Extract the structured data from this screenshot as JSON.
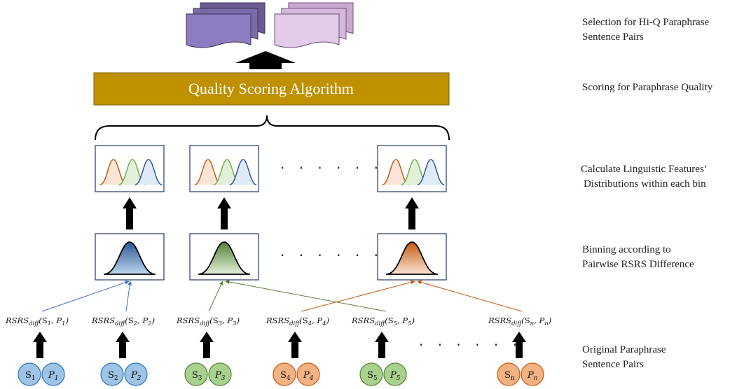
{
  "stages": {
    "selection": [
      "Selection for Hi-Q Paraphrase",
      "Sentence Pairs"
    ],
    "scoring": [
      "Scoring for Paraphrase Quality"
    ],
    "distributions": [
      "Calculate Linguistic Features’",
      "Distributions within each bin"
    ],
    "binning": [
      "Binning according to",
      "Pairwise RSRS Difference"
    ],
    "original": [
      "Original Paraphrase",
      "Sentence Pairs"
    ]
  },
  "algorithm": {
    "label": "Quality Scoring Algorithm",
    "color": "#bf9000"
  },
  "ellipsis": "· · · · · ·",
  "bins": [
    {
      "id": "bin-1",
      "color": "#4472c4",
      "light": "#9dc3e6"
    },
    {
      "id": "bin-2",
      "color": "#70ad47",
      "light": "#c5e0b4"
    },
    {
      "id": "bin-n",
      "color": "#ed7d31",
      "light": "#f8cbad"
    }
  ],
  "feature_colors": [
    "#c55a11",
    "#70ad47",
    "#2f5597"
  ],
  "rsrs": {
    "function": "RSRS",
    "subscript": "diff",
    "pairs": [
      {
        "s": "S",
        "p": "P",
        "idx": "1"
      },
      {
        "s": "S",
        "p": "P",
        "idx": "2"
      },
      {
        "s": "S",
        "p": "P",
        "idx": "3"
      },
      {
        "s": "S",
        "p": "P",
        "idx": "4"
      },
      {
        "s": "S",
        "p": "P",
        "idx": "5"
      },
      {
        "s": "S",
        "p": "P",
        "idx": "n"
      }
    ]
  },
  "pairs": [
    {
      "s": "S",
      "p": "P",
      "idx": "1",
      "color": "#9dc3e6",
      "stroke": "#2e75b6"
    },
    {
      "s": "S",
      "p": "P",
      "idx": "2",
      "color": "#9dc3e6",
      "stroke": "#2e75b6"
    },
    {
      "s": "S",
      "p": "P",
      "idx": "3",
      "color": "#a9d18e",
      "stroke": "#548235"
    },
    {
      "s": "S",
      "p": "P",
      "idx": "4",
      "color": "#f4b183",
      "stroke": "#c55a11"
    },
    {
      "s": "S",
      "p": "P",
      "idx": "5",
      "color": "#a9d18e",
      "stroke": "#548235"
    },
    {
      "s": "S",
      "p": "P",
      "idx": "n",
      "color": "#f4b183",
      "stroke": "#c55a11"
    }
  ],
  "arrow_colors": {
    "blue": "#4472c4",
    "green": "#548235",
    "orange": "#c55a11"
  },
  "doc_stacks": {
    "left": "#8e7cc3",
    "right": "#d5b8dc"
  }
}
